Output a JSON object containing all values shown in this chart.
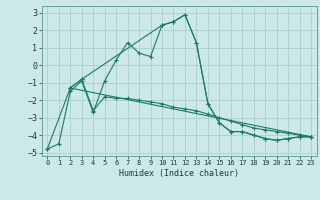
{
  "xlabel": "Humidex (Indice chaleur)",
  "xlim": [
    -0.5,
    23.5
  ],
  "ylim": [
    -5.2,
    3.4
  ],
  "yticks": [
    -5,
    -4,
    -3,
    -2,
    -1,
    0,
    1,
    2,
    3
  ],
  "xticks": [
    0,
    1,
    2,
    3,
    4,
    5,
    6,
    7,
    8,
    9,
    10,
    11,
    12,
    13,
    14,
    15,
    16,
    17,
    18,
    19,
    20,
    21,
    22,
    23
  ],
  "bg_color": "#cce8e8",
  "line_color": "#1a7a6a",
  "grid_color": "#aacece",
  "lines": [
    {
      "x": [
        0,
        1,
        2,
        3,
        4,
        5,
        6,
        7,
        8,
        9,
        10,
        11,
        12,
        13,
        14,
        15,
        16,
        17,
        18,
        19,
        20,
        21,
        22,
        23
      ],
      "y": [
        -4.8,
        -4.5,
        -1.5,
        -0.9,
        -2.7,
        -0.9,
        0.3,
        1.3,
        0.7,
        0.5,
        2.3,
        2.5,
        2.9,
        1.3,
        -2.2,
        -3.3,
        -3.8,
        -3.8,
        -4.0,
        -4.2,
        -4.3,
        -4.2,
        -4.1,
        -4.1
      ]
    },
    {
      "x": [
        0,
        2,
        3,
        4,
        5,
        6,
        7,
        8,
        9,
        10,
        11,
        12,
        13,
        14,
        15,
        16,
        17,
        18,
        19,
        20,
        21,
        22,
        23
      ],
      "y": [
        -4.8,
        -1.3,
        -0.8,
        -2.6,
        -1.8,
        -1.9,
        -1.9,
        -2.0,
        -2.1,
        -2.2,
        -2.4,
        -2.5,
        -2.6,
        -2.8,
        -3.0,
        -3.2,
        -3.4,
        -3.6,
        -3.7,
        -3.8,
        -3.9,
        -4.0,
        -4.1
      ]
    },
    {
      "x": [
        2,
        3,
        10,
        11,
        12,
        13,
        14,
        15,
        16,
        17,
        18,
        19,
        20,
        21,
        22,
        23
      ],
      "y": [
        -1.3,
        -0.8,
        2.3,
        2.5,
        2.9,
        1.3,
        -2.2,
        -3.3,
        -3.8,
        -3.8,
        -4.0,
        -4.2,
        -4.3,
        -4.2,
        -4.1,
        -4.1
      ]
    },
    {
      "x": [
        2,
        23
      ],
      "y": [
        -1.3,
        -4.1
      ]
    }
  ]
}
